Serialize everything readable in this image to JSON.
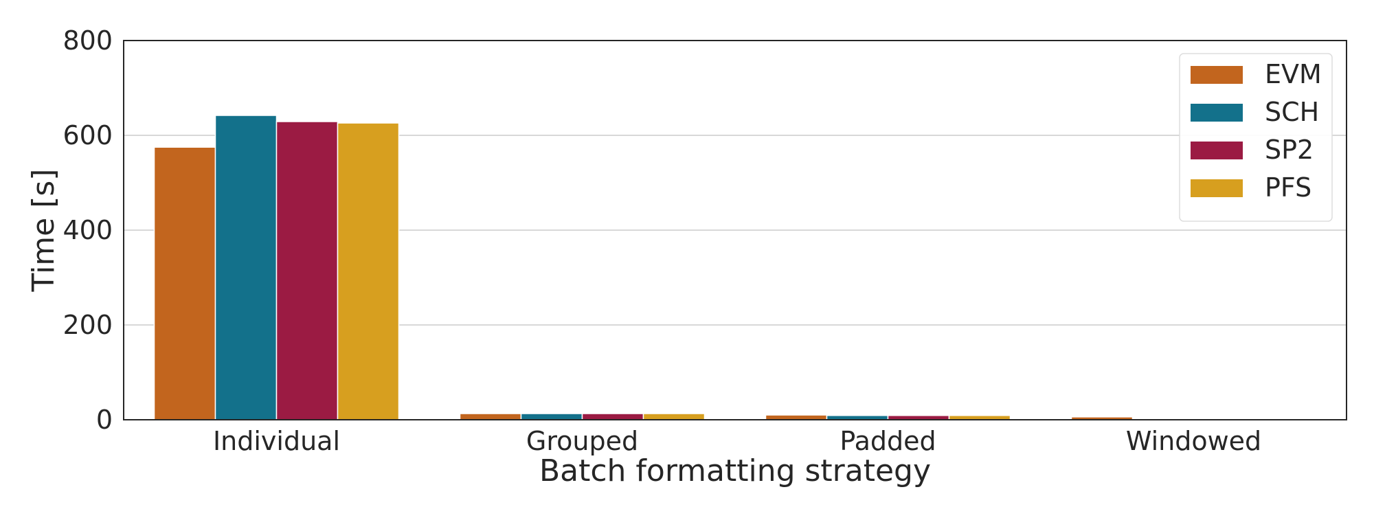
{
  "chart_data": {
    "type": "bar",
    "title": "",
    "xlabel": "Batch formatting strategy",
    "ylabel": "Time [s]",
    "categories": [
      "Individual",
      "Grouped",
      "Padded",
      "Windowed"
    ],
    "series": [
      {
        "name": "EVM",
        "color": "#c2651e",
        "values": [
          575,
          13,
          10,
          6
        ]
      },
      {
        "name": "SCH",
        "color": "#13718b",
        "values": [
          642,
          13,
          9,
          0
        ]
      },
      {
        "name": "SP2",
        "color": "#9b1b43",
        "values": [
          629,
          13,
          9,
          0
        ]
      },
      {
        "name": "PFS",
        "color": "#d79f1f",
        "values": [
          626,
          13,
          9,
          0
        ]
      }
    ],
    "ylim": [
      0,
      800
    ],
    "yticks": [
      "0",
      "200",
      "400",
      "600",
      "800"
    ],
    "grid": "horizontal",
    "legend_position": "top-right"
  }
}
